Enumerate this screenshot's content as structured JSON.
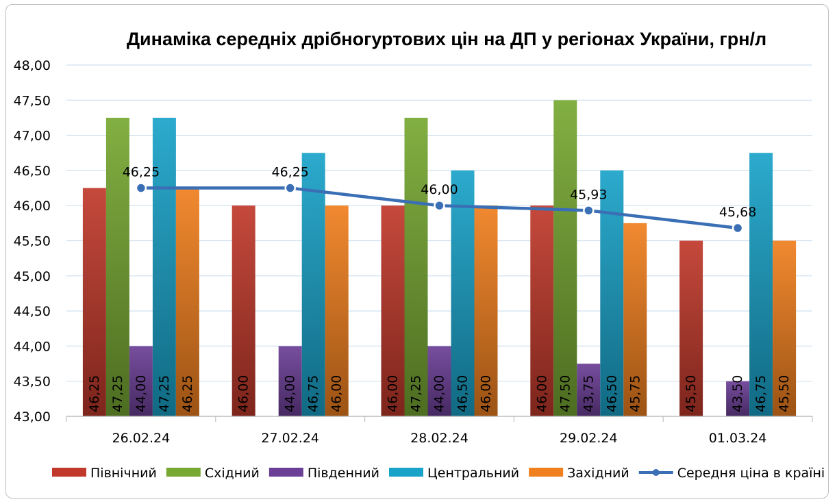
{
  "chart_data": {
    "type": "bar",
    "title": "Динаміка середніх дрібногуртових цін на ДП у регіонах України, грн/л",
    "xlabel": "",
    "ylabel": "",
    "ylim": [
      43,
      48
    ],
    "yticks": [
      "43,00",
      "43,50",
      "44,00",
      "44,50",
      "45,00",
      "45,50",
      "46,00",
      "46,50",
      "47,00",
      "47,50",
      "48,00"
    ],
    "grid": true,
    "legend_position": "bottom",
    "categories": [
      "26.02.24",
      "27.02.24",
      "28.02.24",
      "29.02.24",
      "01.03.24"
    ],
    "series": [
      {
        "name": "Північний",
        "kind": "bar",
        "color": "#c0392b",
        "values": [
          46.25,
          46.0,
          46.0,
          46.0,
          45.5
        ],
        "labels": [
          "46,25",
          "46,00",
          "46,00",
          "46,00",
          "45,50"
        ]
      },
      {
        "name": "Східний",
        "kind": "bar",
        "color": "#77a832",
        "values": [
          47.25,
          null,
          47.25,
          47.5,
          null
        ],
        "labels": [
          "47,25",
          "",
          "47,25",
          "47,50",
          ""
        ]
      },
      {
        "name": "Південний",
        "kind": "bar",
        "color": "#6b3f96",
        "values": [
          44.0,
          44.0,
          44.0,
          43.75,
          43.5
        ],
        "labels": [
          "44,00",
          "44,00",
          "44,00",
          "43,75",
          "43,50"
        ]
      },
      {
        "name": "Центральний",
        "kind": "bar",
        "color": "#1aa3c9",
        "values": [
          47.25,
          46.75,
          46.5,
          46.5,
          46.75
        ],
        "labels": [
          "47,25",
          "46,75",
          "46,50",
          "46,50",
          "46,75"
        ]
      },
      {
        "name": "Західний",
        "kind": "bar",
        "color": "#f07f1e",
        "values": [
          46.25,
          46.0,
          46.0,
          45.75,
          45.5
        ],
        "labels": [
          "46,25",
          "46,00",
          "46,00",
          "45,75",
          "45,50"
        ]
      },
      {
        "name": "Середня ціна в країні",
        "kind": "line",
        "color": "#3a6fb5",
        "values": [
          46.25,
          46.25,
          46.0,
          45.93,
          45.68
        ],
        "labels": [
          "46,25",
          "46,25",
          "46,00",
          "45,93",
          "45,68"
        ]
      }
    ]
  }
}
